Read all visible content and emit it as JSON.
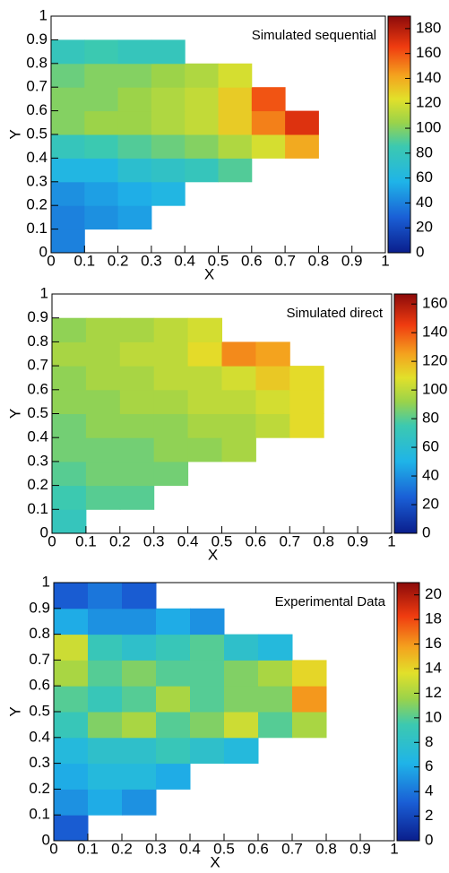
{
  "chart_data": [
    {
      "type": "heatmap",
      "title": "Simulated sequential",
      "x_label": "X",
      "y_label": "Y",
      "colormap": "rainbow",
      "x": [
        0.05,
        0.15,
        0.25,
        0.35,
        0.45,
        0.55,
        0.65,
        0.75,
        0.85
      ],
      "y": [
        0.05,
        0.15,
        0.25,
        0.35,
        0.45,
        0.55,
        0.65,
        0.75,
        0.85
      ],
      "z": [
        [
          40,
          null,
          null,
          null,
          null,
          null,
          null,
          null,
          null
        ],
        [
          40,
          45,
          50,
          null,
          null,
          null,
          null,
          null,
          null
        ],
        [
          45,
          50,
          55,
          60,
          null,
          null,
          null,
          null,
          null
        ],
        [
          60,
          60,
          70,
          75,
          80,
          90,
          null,
          null,
          null
        ],
        [
          80,
          85,
          90,
          95,
          100,
          110,
          120,
          140,
          null
        ],
        [
          100,
          105,
          105,
          110,
          115,
          130,
          150,
          170,
          null
        ],
        [
          100,
          100,
          105,
          110,
          115,
          130,
          160,
          null,
          null
        ],
        [
          95,
          100,
          100,
          105,
          110,
          120,
          null,
          null,
          null
        ],
        [
          80,
          85,
          80,
          80,
          null,
          null,
          null,
          null,
          null
        ]
      ],
      "xlim": [
        0,
        1
      ],
      "ylim": [
        0,
        1
      ],
      "xticks": [
        0,
        0.1,
        0.2,
        0.3,
        0.4,
        0.5,
        0.6,
        0.7,
        0.8,
        0.9,
        1
      ],
      "yticks": [
        0,
        0.1,
        0.2,
        0.3,
        0.4,
        0.5,
        0.6,
        0.7,
        0.8,
        0.9,
        1
      ],
      "zlim": [
        0,
        190
      ],
      "zticks": [
        0,
        20,
        40,
        60,
        80,
        100,
        120,
        140,
        160,
        180
      ]
    },
    {
      "type": "heatmap",
      "title": "Simulated direct",
      "x_label": "X",
      "y_label": "Y",
      "colormap": "rainbow",
      "x": [
        0.05,
        0.15,
        0.25,
        0.35,
        0.45,
        0.55,
        0.65,
        0.75,
        0.85
      ],
      "y": [
        0.05,
        0.15,
        0.25,
        0.35,
        0.45,
        0.55,
        0.65,
        0.75,
        0.85
      ],
      "z": [
        [
          70,
          null,
          null,
          null,
          null,
          null,
          null,
          null,
          null
        ],
        [
          75,
          80,
          80,
          null,
          null,
          null,
          null,
          null,
          null
        ],
        [
          80,
          85,
          85,
          85,
          null,
          null,
          null,
          null,
          null
        ],
        [
          85,
          85,
          85,
          90,
          90,
          95,
          null,
          null,
          null
        ],
        [
          85,
          90,
          90,
          90,
          95,
          95,
          100,
          110,
          null
        ],
        [
          90,
          90,
          95,
          95,
          100,
          100,
          105,
          110,
          null
        ],
        [
          90,
          95,
          95,
          100,
          100,
          105,
          115,
          110,
          null
        ],
        [
          95,
          95,
          100,
          100,
          110,
          130,
          125,
          null,
          null
        ],
        [
          90,
          95,
          95,
          100,
          105,
          null,
          null,
          null,
          null
        ]
      ],
      "xlim": [
        0,
        1
      ],
      "ylim": [
        0,
        1
      ],
      "xticks": [
        0,
        0.1,
        0.2,
        0.3,
        0.4,
        0.5,
        0.6,
        0.7,
        0.8,
        0.9,
        1
      ],
      "yticks": [
        0,
        0.1,
        0.2,
        0.3,
        0.4,
        0.5,
        0.6,
        0.7,
        0.8,
        0.9,
        1
      ],
      "zlim": [
        0,
        167
      ],
      "zticks": [
        0,
        20,
        40,
        60,
        80,
        100,
        120,
        140,
        160
      ]
    },
    {
      "type": "heatmap",
      "title": "Experimental Data",
      "x_label": "X",
      "y_label": "Y",
      "colormap": "rainbow",
      "x": [
        0.05,
        0.15,
        0.25,
        0.35,
        0.45,
        0.55,
        0.65,
        0.75,
        0.85
      ],
      "y": [
        0.05,
        0.15,
        0.25,
        0.35,
        0.45,
        0.55,
        0.65,
        0.75,
        0.85,
        0.95
      ],
      "z": [
        [
          3,
          null,
          null,
          null,
          null,
          null,
          null,
          null,
          null
        ],
        [
          5,
          6,
          5,
          null,
          null,
          null,
          null,
          null,
          null
        ],
        [
          6,
          7,
          7,
          6,
          null,
          null,
          null,
          null,
          null
        ],
        [
          7,
          8,
          8,
          9,
          8,
          7,
          null,
          null,
          null
        ],
        [
          9,
          11,
          12,
          10,
          11,
          13,
          10,
          12,
          null
        ],
        [
          10,
          9,
          10,
          12,
          10,
          11,
          11,
          16,
          null
        ],
        [
          12,
          10,
          11,
          10,
          10,
          11,
          12,
          14,
          null
        ],
        [
          13,
          9,
          8,
          9,
          10,
          8,
          7,
          null,
          null
        ],
        [
          6,
          5,
          5,
          6,
          5,
          null,
          null,
          null,
          null
        ],
        [
          3,
          4,
          3,
          null,
          null,
          null,
          null,
          null,
          null
        ]
      ],
      "xlim": [
        0,
        1
      ],
      "ylim": [
        0,
        1
      ],
      "xticks": [
        0,
        0.1,
        0.2,
        0.3,
        0.4,
        0.5,
        0.6,
        0.7,
        0.8,
        0.9,
        1
      ],
      "yticks": [
        0,
        0.1,
        0.2,
        0.3,
        0.4,
        0.5,
        0.6,
        0.7,
        0.8,
        0.9,
        1
      ],
      "zlim": [
        0,
        21
      ],
      "zticks": [
        0,
        2,
        4,
        6,
        8,
        10,
        12,
        14,
        16,
        18,
        20
      ]
    }
  ]
}
